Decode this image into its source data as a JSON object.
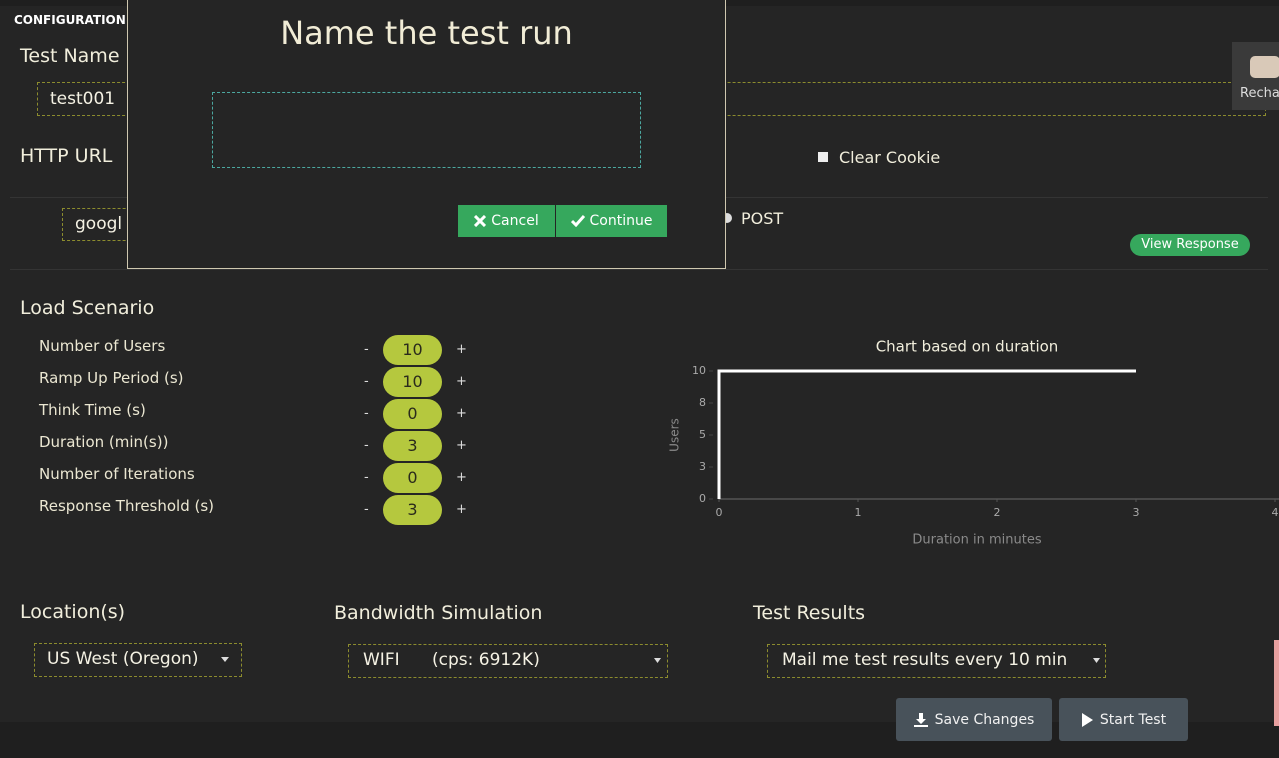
{
  "header": {
    "title": "CONFIGURATION S",
    "recharge": "Recha"
  },
  "test_name": {
    "label": "Test Name",
    "value": "test001"
  },
  "http": {
    "label": "HTTP URL",
    "url": "googl",
    "clear_cookie": "Clear Cookie",
    "method": "POST",
    "view_response": "View Response"
  },
  "modal": {
    "title": "Name the test run",
    "cancel": "Cancel",
    "continue": "Continue"
  },
  "load_scenario": {
    "title": "Load Scenario",
    "decrement": "-",
    "increment": "+",
    "params": [
      {
        "label": "Number of Users",
        "value": "10"
      },
      {
        "label": "Ramp Up Period (s)",
        "value": "10"
      },
      {
        "label": "Think Time (s)",
        "value": "0"
      },
      {
        "label": "Duration (min(s))",
        "value": "3"
      },
      {
        "label": "Number of Iterations",
        "value": "0"
      },
      {
        "label": "Response Threshold (s)",
        "value": "3"
      }
    ]
  },
  "chart_data": {
    "type": "line",
    "title": "Chart based on duration",
    "x_label": "Duration in minutes",
    "y_label": "Users",
    "x": [
      0,
      0,
      3
    ],
    "values": [
      0,
      10,
      10
    ],
    "color": "#ffffff",
    "xlim": [
      0,
      4
    ],
    "xticks": [
      0,
      1,
      2,
      3,
      4
    ],
    "ylim": [
      0,
      10
    ],
    "yticks": [
      0,
      {
        "value": 2.5,
        "label": "3"
      },
      5,
      {
        "value": 7.5,
        "label": "8"
      },
      10
    ],
    "grid": false
  },
  "location": {
    "title": "Location(s)",
    "value": "US West (Oregon)"
  },
  "bandwidth": {
    "title": "Bandwidth Simulation",
    "value": "WIFI      (cps: 6912K)"
  },
  "test_results": {
    "title": "Test Results",
    "value": "Mail me test results every 10 min"
  },
  "actions": {
    "save": "Save Changes",
    "start": "Start Test"
  }
}
